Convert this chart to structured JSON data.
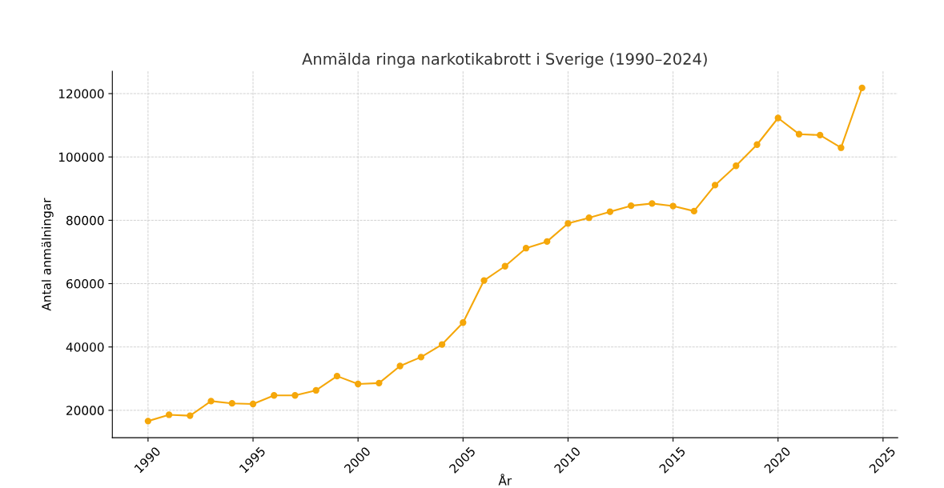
{
  "chart_data": {
    "type": "line",
    "title": "Anmälda ringa narkotikabrott i Sverige (1990–2024)",
    "xlabel": "År",
    "ylabel": "Antal anmälningar",
    "x": [
      1990,
      1991,
      1992,
      1993,
      1994,
      1995,
      1996,
      1997,
      1998,
      1999,
      2000,
      2001,
      2002,
      2003,
      2004,
      2005,
      2006,
      2007,
      2008,
      2009,
      2010,
      2011,
      2012,
      2013,
      2014,
      2015,
      2016,
      2017,
      2018,
      2019,
      2020,
      2021,
      2022,
      2023,
      2024
    ],
    "series": [
      {
        "color": "#f5a70a",
        "values": [
          16600,
          18600,
          18300,
          22900,
          22200,
          22000,
          24700,
          24700,
          26300,
          30800,
          28300,
          28600,
          34000,
          36800,
          40800,
          47700,
          61000,
          65500,
          71200,
          73300,
          79000,
          80800,
          82700,
          84600,
          85300,
          84500,
          82900,
          91100,
          97200,
          103900,
          112300,
          107200,
          106900,
          102900,
          121800
        ]
      }
    ],
    "xlim": [
      1988.3,
      2025.7
    ],
    "xticks": [
      1990,
      1995,
      2000,
      2005,
      2010,
      2015,
      2020,
      2025
    ],
    "ylim": [
      11340,
      127060
    ],
    "yticks": [
      20000,
      40000,
      60000,
      80000,
      100000,
      120000
    ],
    "grid": true,
    "marker": "circle",
    "line_style": "solid"
  }
}
